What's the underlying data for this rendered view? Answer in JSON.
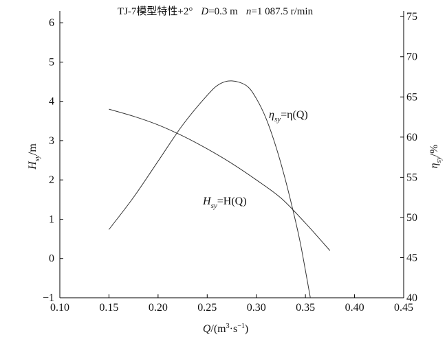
{
  "chart_data": {
    "type": "line",
    "title": "TJ-7模型特性+2°  D=0.3 m  n=1 087.5 r/min",
    "title_parts": {
      "prefix": "TJ-7模型特性+2°",
      "d_symbol": "D",
      "d_value": "=0.3 m",
      "n_symbol": "n",
      "n_value": "=1 087.5 r/min"
    },
    "xlabel": "Q/(m³·s⁻¹)",
    "xlabel_parts": {
      "symbol": "Q",
      "unit_open": "/(m",
      "sup1": "3",
      "dot": "·s",
      "sup2": "−1",
      "unit_close": ")"
    },
    "ylabel_left": "Hsy/m",
    "ylabel_left_parts": {
      "symbol": "H",
      "sub": "sy",
      "unit": "/m"
    },
    "ylabel_right": "ηsy/%",
    "ylabel_right_parts": {
      "symbol": "η",
      "sub": "sy",
      "unit": "/%"
    },
    "xlim": [
      0.1,
      0.45
    ],
    "ylim_left": [
      -1,
      6.3
    ],
    "ylim_right": [
      40,
      75.7
    ],
    "x_ticks": [
      0.1,
      0.15,
      0.2,
      0.25,
      0.3,
      0.35,
      0.4,
      0.45
    ],
    "x_tick_labels": [
      "0.10",
      "0.15",
      "0.20",
      "0.25",
      "0.30",
      "0.35",
      "0.40",
      "0.45"
    ],
    "y_left_ticks": [
      -1,
      0,
      1,
      2,
      3,
      4,
      5,
      6
    ],
    "y_left_tick_labels": [
      "−1",
      "0",
      "1",
      "2",
      "3",
      "4",
      "5",
      "6"
    ],
    "y_right_ticks": [
      40,
      45,
      50,
      55,
      60,
      65,
      70,
      75
    ],
    "y_right_tick_labels": [
      "40",
      "45",
      "50",
      "55",
      "60",
      "65",
      "70",
      "75"
    ],
    "grid": false,
    "series": [
      {
        "name": "Hsy=H(Q)",
        "label_parts": {
          "lhs": "H",
          "lhs_sub": "sy",
          "rhs": "=H(Q)"
        },
        "axis": "left",
        "x": [
          0.15,
          0.175,
          0.2,
          0.225,
          0.25,
          0.275,
          0.3,
          0.325,
          0.35,
          0.375
        ],
        "y": [
          3.8,
          3.62,
          3.4,
          3.12,
          2.79,
          2.42,
          2.0,
          1.54,
          0.9,
          0.2
        ]
      },
      {
        "name": "ηsy=η(Q)",
        "label_parts": {
          "lhs": "η",
          "lhs_sub": "sy",
          "rhs": "=η(Q)"
        },
        "axis": "right",
        "x": [
          0.15,
          0.175,
          0.2,
          0.225,
          0.25,
          0.2625,
          0.275,
          0.29,
          0.3,
          0.31,
          0.32,
          0.33,
          0.34,
          0.345,
          0.35,
          0.355
        ],
        "y": [
          48.5,
          52.5,
          57.0,
          61.5,
          65.2,
          66.6,
          67.0,
          66.4,
          64.8,
          62.3,
          58.8,
          54.5,
          49.5,
          46.7,
          43.4,
          40.0
        ]
      }
    ]
  }
}
